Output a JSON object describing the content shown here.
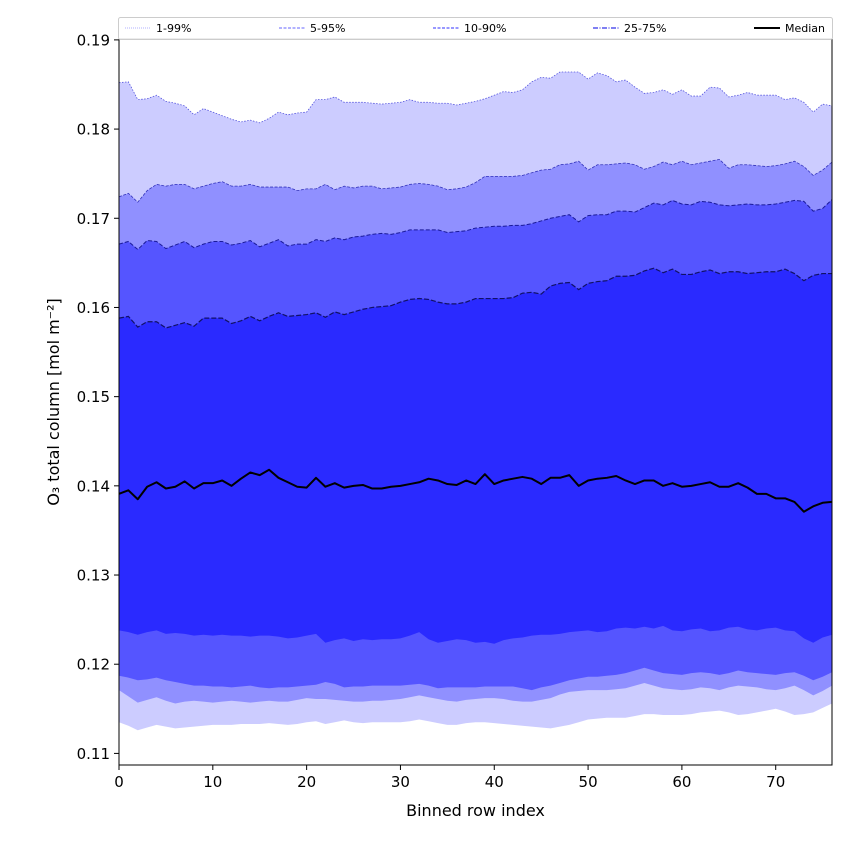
{
  "chart_data": {
    "type": "area",
    "title": "",
    "xlabel": "Binned row index",
    "ylabel": "O₃ total column [mol m⁻²]",
    "xlim": [
      0,
      76
    ],
    "ylim": [
      0.1087,
      0.1901
    ],
    "xticks": [
      0,
      10,
      20,
      30,
      40,
      50,
      60,
      70
    ],
    "xtick_labels": [
      "0",
      "10",
      "20",
      "30",
      "40",
      "50",
      "60",
      "70"
    ],
    "yticks": [
      0.11,
      0.12,
      0.13,
      0.14,
      0.15,
      0.16,
      0.17,
      0.18,
      0.19
    ],
    "ytick_labels": [
      "0.11",
      "0.12",
      "0.13",
      "0.14",
      "0.15",
      "0.16",
      "0.17",
      "0.18",
      "0.19"
    ],
    "grid": false,
    "legend_position": "top (above plot, spanning width)",
    "x": [
      0,
      1,
      2,
      3,
      4,
      5,
      6,
      7,
      8,
      9,
      10,
      11,
      12,
      13,
      14,
      15,
      16,
      17,
      18,
      19,
      20,
      21,
      22,
      23,
      24,
      25,
      26,
      27,
      28,
      29,
      30,
      31,
      32,
      33,
      34,
      35,
      36,
      37,
      38,
      39,
      40,
      41,
      42,
      43,
      44,
      45,
      46,
      47,
      48,
      49,
      50,
      51,
      52,
      53,
      54,
      55,
      56,
      57,
      58,
      59,
      60,
      61,
      62,
      63,
      64,
      65,
      66,
      67,
      68,
      69,
      70,
      71,
      72,
      73,
      74,
      75,
      76
    ],
    "bands": [
      {
        "name": "1-99%",
        "fill": "#ccccff",
        "line_color": "#5555dd",
        "upper": [
          0.1852,
          0.1853,
          0.1833,
          0.1834,
          0.1838,
          0.1831,
          0.1829,
          0.1826,
          0.1816,
          0.1823,
          0.1819,
          0.1815,
          0.1811,
          0.1808,
          0.181,
          0.1807,
          0.1812,
          0.1819,
          0.1816,
          0.1818,
          0.1819,
          0.1833,
          0.1833,
          0.1836,
          0.183,
          0.183,
          0.183,
          0.1829,
          0.1828,
          0.1829,
          0.183,
          0.1833,
          0.183,
          0.183,
          0.1829,
          0.1829,
          0.1827,
          0.1829,
          0.1831,
          0.1834,
          0.1838,
          0.1842,
          0.1841,
          0.1844,
          0.1853,
          0.1858,
          0.1857,
          0.1864,
          0.1864,
          0.1864,
          0.1856,
          0.1863,
          0.186,
          0.1853,
          0.1855,
          0.1847,
          0.184,
          0.1841,
          0.1844,
          0.1839,
          0.1844,
          0.1837,
          0.1837,
          0.1847,
          0.1846,
          0.1836,
          0.1838,
          0.1841,
          0.1838,
          0.1838,
          0.1838,
          0.1833,
          0.1835,
          0.183,
          0.1819,
          0.1828,
          0.1826
        ],
        "lower": [
          0.1135,
          0.1131,
          0.1126,
          0.1129,
          0.1132,
          0.113,
          0.1128,
          0.1129,
          0.113,
          0.1131,
          0.1132,
          0.1132,
          0.1132,
          0.1133,
          0.1133,
          0.1133,
          0.1134,
          0.1133,
          0.1132,
          0.1133,
          0.1135,
          0.1136,
          0.1133,
          0.1135,
          0.1137,
          0.1135,
          0.1134,
          0.1135,
          0.1135,
          0.1135,
          0.1135,
          0.1136,
          0.1138,
          0.1136,
          0.1134,
          0.1132,
          0.1132,
          0.1134,
          0.1135,
          0.1135,
          0.1134,
          0.1133,
          0.1132,
          0.1131,
          0.113,
          0.1129,
          0.1128,
          0.113,
          0.1132,
          0.1135,
          0.1138,
          0.1139,
          0.114,
          0.114,
          0.114,
          0.1142,
          0.1144,
          0.1144,
          0.1143,
          0.1143,
          0.1143,
          0.1144,
          0.1146,
          0.1147,
          0.1148,
          0.1146,
          0.1143,
          0.1144,
          0.1146,
          0.1148,
          0.115,
          0.1147,
          0.1143,
          0.1144,
          0.1146,
          0.1151,
          0.1156
        ]
      },
      {
        "name": "5-95%",
        "fill": "#9090ff",
        "line_color": "#3333bb",
        "upper": [
          0.1724,
          0.1728,
          0.1718,
          0.1731,
          0.1738,
          0.1736,
          0.1738,
          0.1738,
          0.1733,
          0.1736,
          0.1739,
          0.1741,
          0.1736,
          0.1736,
          0.1738,
          0.1735,
          0.1735,
          0.1735,
          0.1735,
          0.1731,
          0.1733,
          0.1733,
          0.1738,
          0.1732,
          0.1736,
          0.1734,
          0.1736,
          0.1736,
          0.1733,
          0.1734,
          0.1735,
          0.1738,
          0.1739,
          0.1738,
          0.1736,
          0.1732,
          0.1733,
          0.1735,
          0.174,
          0.1747,
          0.1747,
          0.1747,
          0.1747,
          0.1748,
          0.1751,
          0.1754,
          0.1755,
          0.176,
          0.1761,
          0.1764,
          0.1754,
          0.176,
          0.176,
          0.1761,
          0.1762,
          0.176,
          0.1755,
          0.1758,
          0.1763,
          0.176,
          0.1764,
          0.176,
          0.1762,
          0.1764,
          0.1766,
          0.1756,
          0.176,
          0.176,
          0.1759,
          0.1758,
          0.1759,
          0.1761,
          0.1764,
          0.1758,
          0.1748,
          0.1754,
          0.1763
        ],
        "lower": [
          0.1171,
          0.1164,
          0.1157,
          0.116,
          0.1163,
          0.1159,
          0.1156,
          0.1158,
          0.1159,
          0.1158,
          0.1157,
          0.1158,
          0.1159,
          0.1158,
          0.1157,
          0.1158,
          0.1159,
          0.1158,
          0.1158,
          0.116,
          0.1162,
          0.1161,
          0.1161,
          0.116,
          0.1159,
          0.1158,
          0.1158,
          0.1159,
          0.1159,
          0.116,
          0.1161,
          0.1163,
          0.1165,
          0.1163,
          0.1161,
          0.1159,
          0.1158,
          0.116,
          0.1161,
          0.1162,
          0.1162,
          0.1161,
          0.1159,
          0.1158,
          0.1158,
          0.116,
          0.1162,
          0.1166,
          0.1169,
          0.117,
          0.1171,
          0.1171,
          0.1171,
          0.1172,
          0.1173,
          0.1176,
          0.1179,
          0.1176,
          0.1173,
          0.1172,
          0.1171,
          0.1172,
          0.1174,
          0.1173,
          0.1171,
          0.1174,
          0.1176,
          0.1175,
          0.1174,
          0.1172,
          0.1171,
          0.1173,
          0.1176,
          0.1171,
          0.1165,
          0.117,
          0.1176
        ]
      },
      {
        "name": "10-90%",
        "fill": "#5555ff",
        "line_color": "#1a1a99",
        "upper": [
          0.1671,
          0.1674,
          0.1665,
          0.1675,
          0.1674,
          0.1666,
          0.167,
          0.1674,
          0.1667,
          0.1671,
          0.1674,
          0.1674,
          0.167,
          0.1672,
          0.1675,
          0.1668,
          0.1672,
          0.1676,
          0.1669,
          0.1671,
          0.1671,
          0.1676,
          0.1674,
          0.1678,
          0.1676,
          0.1679,
          0.168,
          0.1682,
          0.1683,
          0.1682,
          0.1684,
          0.1687,
          0.1687,
          0.1687,
          0.1687,
          0.1684,
          0.1685,
          0.1686,
          0.1689,
          0.169,
          0.1691,
          0.1691,
          0.1692,
          0.1692,
          0.1694,
          0.1697,
          0.17,
          0.1702,
          0.1704,
          0.1696,
          0.1703,
          0.1704,
          0.1704,
          0.1708,
          0.1708,
          0.1707,
          0.1712,
          0.1717,
          0.1715,
          0.172,
          0.1716,
          0.1715,
          0.1719,
          0.1718,
          0.1715,
          0.1714,
          0.1715,
          0.1716,
          0.1715,
          0.1715,
          0.1716,
          0.1718,
          0.172,
          0.1719,
          0.1708,
          0.1711,
          0.1721
        ],
        "lower": [
          0.1187,
          0.1185,
          0.1182,
          0.1183,
          0.1185,
          0.1182,
          0.118,
          0.1178,
          0.1176,
          0.1176,
          0.1175,
          0.1175,
          0.1174,
          0.1175,
          0.1176,
          0.1174,
          0.1173,
          0.1174,
          0.1174,
          0.1175,
          0.1176,
          0.1177,
          0.118,
          0.1178,
          0.1174,
          0.1175,
          0.1175,
          0.1176,
          0.1176,
          0.1176,
          0.1176,
          0.1177,
          0.1178,
          0.1176,
          0.1173,
          0.1174,
          0.1174,
          0.1174,
          0.1174,
          0.1175,
          0.1175,
          0.1175,
          0.1175,
          0.1173,
          0.1171,
          0.1174,
          0.1176,
          0.1179,
          0.1182,
          0.1184,
          0.1186,
          0.1186,
          0.1187,
          0.1188,
          0.119,
          0.1193,
          0.1196,
          0.1193,
          0.119,
          0.1189,
          0.1188,
          0.119,
          0.1191,
          0.119,
          0.1188,
          0.119,
          0.1193,
          0.1191,
          0.119,
          0.1189,
          0.1188,
          0.119,
          0.1191,
          0.1187,
          0.1182,
          0.1186,
          0.1191
        ]
      },
      {
        "name": "25-75%",
        "fill": "#2a2aff",
        "line_color": "#111166",
        "upper": [
          0.1588,
          0.159,
          0.1578,
          0.1584,
          0.1584,
          0.1577,
          0.158,
          0.1583,
          0.1579,
          0.1588,
          0.1588,
          0.1588,
          0.1582,
          0.1585,
          0.159,
          0.1585,
          0.159,
          0.1594,
          0.159,
          0.1591,
          0.1592,
          0.1594,
          0.1589,
          0.1595,
          0.1592,
          0.1595,
          0.1598,
          0.16,
          0.1601,
          0.1602,
          0.1606,
          0.1609,
          0.161,
          0.1609,
          0.1606,
          0.1604,
          0.1604,
          0.1606,
          0.161,
          0.161,
          0.161,
          0.161,
          0.1611,
          0.1616,
          0.1617,
          0.1615,
          0.1624,
          0.1627,
          0.1628,
          0.162,
          0.1627,
          0.1629,
          0.163,
          0.1635,
          0.1635,
          0.1636,
          0.1641,
          0.1644,
          0.1639,
          0.1643,
          0.1637,
          0.1637,
          0.164,
          0.1642,
          0.1638,
          0.164,
          0.164,
          0.1638,
          0.1639,
          0.164,
          0.164,
          0.1643,
          0.1638,
          0.163,
          0.1636,
          0.1638,
          0.1638
        ],
        "lower": [
          0.1238,
          0.1236,
          0.1233,
          0.1236,
          0.1238,
          0.1234,
          0.1235,
          0.1234,
          0.1232,
          0.1233,
          0.1232,
          0.1233,
          0.1232,
          0.1232,
          0.1231,
          0.1232,
          0.1232,
          0.1231,
          0.1229,
          0.123,
          0.1232,
          0.1234,
          0.1224,
          0.1227,
          0.1229,
          0.1226,
          0.1228,
          0.1227,
          0.1228,
          0.1228,
          0.1229,
          0.1232,
          0.1236,
          0.1228,
          0.1224,
          0.1226,
          0.1228,
          0.1227,
          0.1224,
          0.1225,
          0.1223,
          0.1227,
          0.1229,
          0.123,
          0.1232,
          0.1233,
          0.1233,
          0.1234,
          0.1236,
          0.1237,
          0.1238,
          0.1236,
          0.1237,
          0.124,
          0.1241,
          0.124,
          0.1242,
          0.124,
          0.1243,
          0.1238,
          0.1237,
          0.1239,
          0.124,
          0.1237,
          0.1238,
          0.1241,
          0.1242,
          0.1239,
          0.1238,
          0.124,
          0.1241,
          0.1238,
          0.1237,
          0.1229,
          0.1224,
          0.123,
          0.1233
        ]
      }
    ],
    "median": {
      "name": "Median",
      "color": "#000000",
      "values": [
        0.1391,
        0.1395,
        0.1385,
        0.1399,
        0.1404,
        0.1397,
        0.1399,
        0.1405,
        0.1397,
        0.1403,
        0.1403,
        0.1406,
        0.14,
        0.1408,
        0.1415,
        0.1412,
        0.1418,
        0.1409,
        0.1404,
        0.1399,
        0.1398,
        0.1409,
        0.1399,
        0.1403,
        0.1398,
        0.14,
        0.1401,
        0.1397,
        0.1397,
        0.1399,
        0.14,
        0.1402,
        0.1404,
        0.1408,
        0.1406,
        0.1402,
        0.1401,
        0.1406,
        0.1402,
        0.1413,
        0.1402,
        0.1406,
        0.1408,
        0.141,
        0.1408,
        0.1402,
        0.1409,
        0.1409,
        0.1412,
        0.14,
        0.1406,
        0.1408,
        0.1409,
        0.1411,
        0.1406,
        0.1402,
        0.1406,
        0.1406,
        0.14,
        0.1403,
        0.1399,
        0.14,
        0.1402,
        0.1404,
        0.1399,
        0.1399,
        0.1403,
        0.1398,
        0.1391,
        0.1391,
        0.1386,
        0.1386,
        0.1382,
        0.1371,
        0.1377,
        0.1381,
        0.1382
      ]
    },
    "legend": [
      {
        "label": "1-99%",
        "color": "#ccccff",
        "style": "dotted"
      },
      {
        "label": "5-95%",
        "color": "#9999ff",
        "style": "dashed"
      },
      {
        "label": "10-90%",
        "color": "#7777ff",
        "style": "dashed"
      },
      {
        "label": "25-75%",
        "color": "#5555ee",
        "style": "dashdot"
      },
      {
        "label": "Median",
        "color": "#000000",
        "style": "solid"
      }
    ]
  }
}
